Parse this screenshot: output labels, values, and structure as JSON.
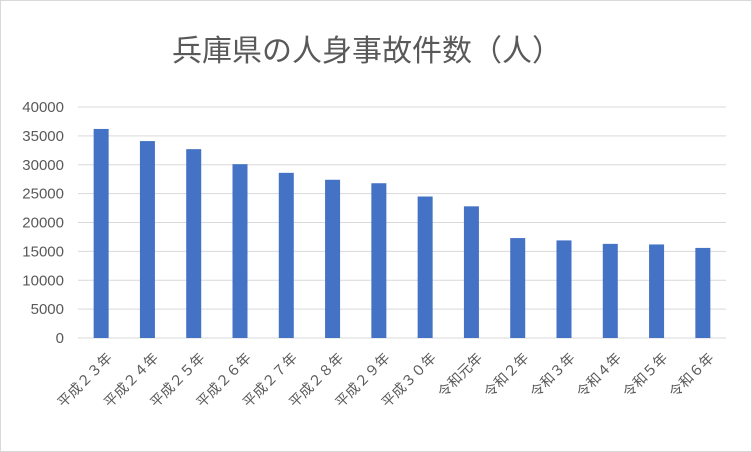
{
  "chart_data": {
    "type": "bar",
    "title": "兵庫県の人身事故件数（人）",
    "categories": [
      "平成２３年",
      "平成２４年",
      "平成２５年",
      "平成２６年",
      "平成２７年",
      "平成２８年",
      "平成２９年",
      "平成３０年",
      "令和元年",
      "令和２年",
      "令和３年",
      "令和４年",
      "令和５年",
      "令和６年"
    ],
    "values": [
      36200,
      34100,
      32700,
      30100,
      28600,
      27400,
      26800,
      24500,
      22800,
      17300,
      16900,
      16300,
      16200,
      15600
    ],
    "ylim": [
      0,
      40000
    ],
    "yticks": [
      0,
      5000,
      10000,
      15000,
      20000,
      25000,
      30000,
      35000,
      40000
    ],
    "xlabel": "",
    "ylabel": "",
    "grid": true,
    "legend": "none",
    "bar_color": "#4472c4",
    "grid_color": "#d9d9d9",
    "text_color": "#595959"
  }
}
